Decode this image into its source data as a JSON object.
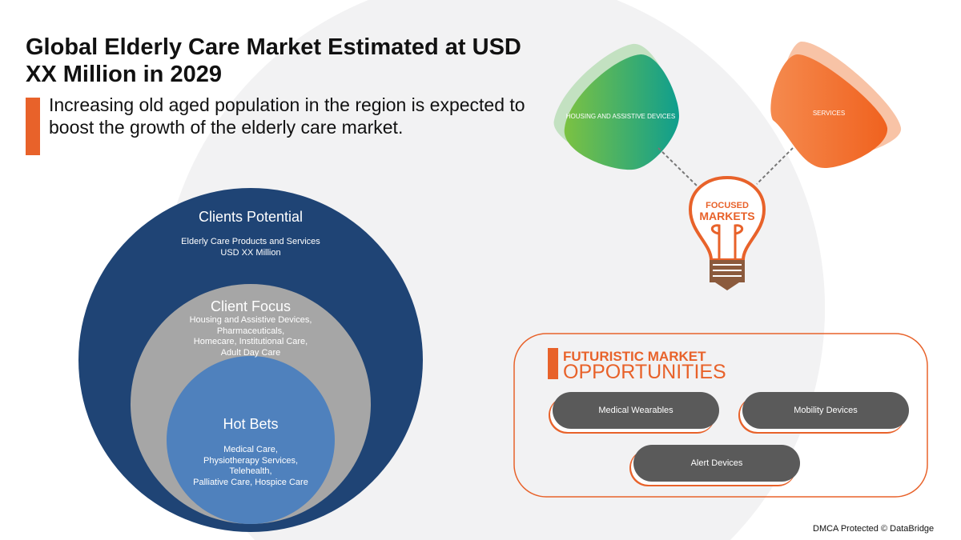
{
  "header": {
    "title": "Global Elderly Care Market Estimated at USD XX Million in 2029",
    "subtitle": "Increasing old aged population in the region is expected to boost the growth of the elderly care market."
  },
  "circles": {
    "outer": {
      "heading": "Clients Potential",
      "line1": "Elderly Care Products and Services",
      "line2": "USD XX Million"
    },
    "middle": {
      "heading": "Client Focus",
      "items": [
        "Housing and Assistive Devices,",
        "Pharmaceuticals,",
        "Homecare, Institutional Care,",
        "Adult Day Care"
      ]
    },
    "inner": {
      "heading": "Hot Bets",
      "items": [
        "Medical Care,",
        "Physiotherapy Services,",
        "Telehealth,",
        "Palliative Care, Hospice Care"
      ]
    }
  },
  "focused": {
    "segments": [
      "HOUSING AND ASSISTIVE DEVICES",
      "SERVICES"
    ],
    "bulb_line1": "FOCUSED",
    "bulb_line2": "MARKETS"
  },
  "opportunities": {
    "title_line1": "FUTURISTIC MARKET",
    "title_line2": "OPPORTUNITIES",
    "items": [
      "Medical Wearables",
      "Mobility Devices",
      "Alert Devices"
    ]
  },
  "footer": {
    "credit": "DMCA Protected © DataBridge"
  },
  "colors": {
    "accent": "#e8622a",
    "navy": "#1f4475",
    "gray": "#a6a6a6",
    "blue": "#4f81bd",
    "green": "#2ea56f",
    "pill": "#5a5a5a"
  }
}
